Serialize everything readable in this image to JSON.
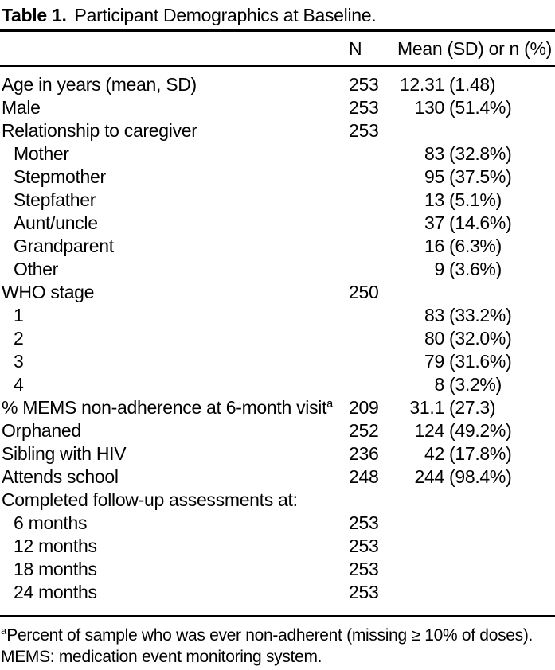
{
  "colors": {
    "text": "#000000",
    "background": "#ffffff",
    "rule": "#000000"
  },
  "table": {
    "title_bold": "Table 1.",
    "title_rest": "Participant Demographics at Baseline.",
    "columns": {
      "n": "N",
      "value": "Mean (SD) or n (%)"
    },
    "rows": [
      {
        "label": "Age in years (mean, SD)",
        "n": "253",
        "value": "12.31",
        "paren": "(1.48)"
      },
      {
        "label": "Male",
        "n": "253",
        "value": "130",
        "paren": "(51.4%)"
      },
      {
        "label": "Relationship to caregiver",
        "n": "253"
      },
      {
        "label": "Mother",
        "value": "83",
        "paren": "(32.8%)"
      },
      {
        "label": "Stepmother",
        "value": "95",
        "paren": "(37.5%)"
      },
      {
        "label": "Stepfather",
        "value": "13",
        "paren": "(5.1%)"
      },
      {
        "label": "Aunt/uncle",
        "value": "37",
        "paren": "(14.6%)"
      },
      {
        "label": "Grandparent",
        "value": "16",
        "paren": "(6.3%)"
      },
      {
        "label": "Other",
        "value": "9",
        "paren": "(3.6%)"
      },
      {
        "label": "WHO stage",
        "n": "250"
      },
      {
        "label": "1",
        "value": "83",
        "paren": "(33.2%)"
      },
      {
        "label": "2",
        "value": "80",
        "paren": "(32.0%)"
      },
      {
        "label": "3",
        "value": "79",
        "paren": "(31.6%)"
      },
      {
        "label": "4",
        "value": "8",
        "paren": "(3.2%)"
      },
      {
        "label": "% MEMS non-adherence at 6-month visit",
        "sup": "a",
        "n": "209",
        "value": "31.1",
        "paren": "(27.3)"
      },
      {
        "label": "Orphaned",
        "n": "252",
        "value": "124",
        "paren": "(49.2%)"
      },
      {
        "label": "Sibling with HIV",
        "n": "236",
        "value": "42",
        "paren": "(17.8%)"
      },
      {
        "label": "Attends school",
        "n": "248",
        "value": "244",
        "paren": "(98.4%)"
      },
      {
        "label": "Completed follow-up assessments at:"
      },
      {
        "label": "6 months",
        "n": "253"
      },
      {
        "label": "12 months",
        "n": "253"
      },
      {
        "label": "18 months",
        "n": "253"
      },
      {
        "label": "24 months",
        "n": "253"
      }
    ],
    "footnotes": {
      "marker": "a",
      "line1": "Percent of sample who was ever non-adherent (missing ≥ 10% of doses).",
      "line2": "MEMS: medication event monitoring system."
    }
  }
}
